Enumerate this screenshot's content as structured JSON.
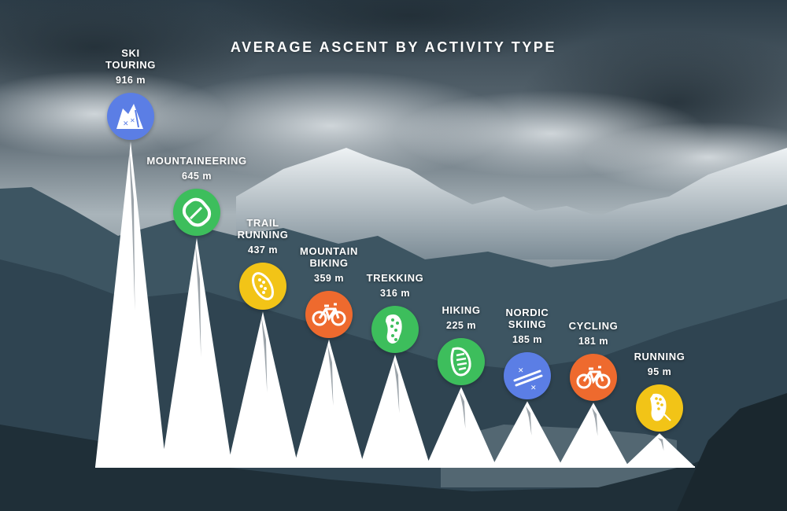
{
  "title": "AVERAGE ASCENT BY ACTIVITY TYPE",
  "chart_data": {
    "type": "bar",
    "title": "AVERAGE ASCENT BY ACTIVITY TYPE",
    "unit": "m",
    "categories": [
      "SKI TOURING",
      "MOUNTAINEERING",
      "TRAIL RUNNING",
      "MOUNTAIN BIKING",
      "TREKKING",
      "HIKING",
      "NORDIC SKIING",
      "CYCLING",
      "RUNNING"
    ],
    "values": [
      916,
      645,
      437,
      359,
      316,
      225,
      185,
      181,
      95
    ],
    "value_labels": [
      "916 m",
      "645 m",
      "437 m",
      "359 m",
      "316 m",
      "225 m",
      "185 m",
      "181 m",
      "95 m"
    ],
    "display_names": [
      "SKI\nTOURING",
      "MOUNTAINEERING",
      "TRAIL\nRUNNING",
      "MOUNTAIN\nBIKING",
      "TREKKING",
      "HIKING",
      "NORDIC\nSKIING",
      "CYCLING",
      "RUNNING"
    ],
    "icons": [
      "ski-touring-icon",
      "carabiner-icon",
      "trail-shoe-icon",
      "bike-icon",
      "boot-sole-icon",
      "hiking-sole-icon",
      "nordic-skis-icon",
      "bike-icon",
      "running-shoe-icon"
    ],
    "colors": [
      "#5b7ee5",
      "#3dbe5c",
      "#f2c417",
      "#ee6a2e",
      "#3dbe5c",
      "#3dbe5c",
      "#5b7ee5",
      "#ee6a2e",
      "#f2c417"
    ],
    "peak_color": "#ffffff",
    "ylim": [
      0,
      916
    ],
    "grid": false,
    "legend": "none"
  }
}
